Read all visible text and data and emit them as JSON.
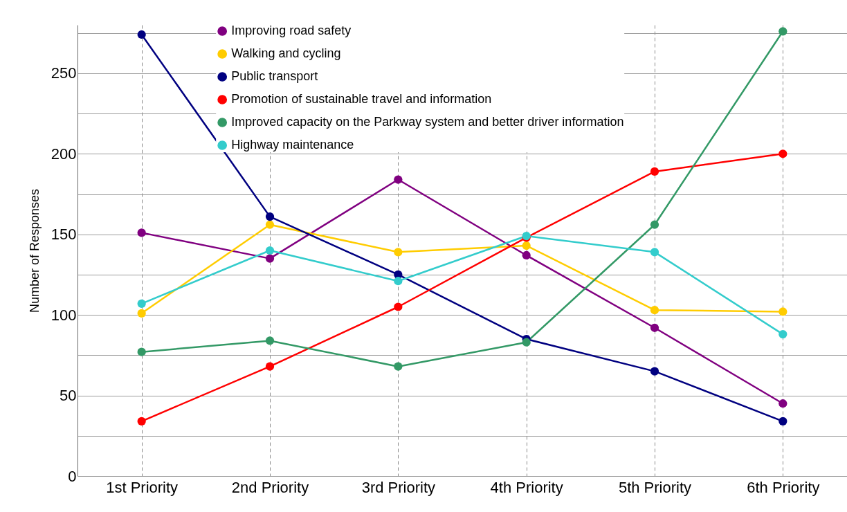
{
  "chart_data": {
    "type": "line",
    "ylabel": "Number of Responses",
    "categories": [
      "1st Priority",
      "2nd Priority",
      "3rd Priority",
      "4th Priority",
      "5th Priority",
      "6th Priority"
    ],
    "series": [
      {
        "name": "Improving road safety",
        "color": "#800080",
        "values": [
          151,
          135,
          184,
          137,
          92,
          45
        ]
      },
      {
        "name": "Walking and cycling",
        "color": "#ffcc00",
        "values": [
          101,
          156,
          139,
          143,
          103,
          102
        ]
      },
      {
        "name": "Public transport",
        "color": "#000080",
        "values": [
          274,
          161,
          125,
          85,
          65,
          34
        ]
      },
      {
        "name": "Promotion of sustainable travel and information",
        "color": "#ff0000",
        "values": [
          34,
          68,
          105,
          148,
          189,
          200
        ]
      },
      {
        "name": "Improved capacity on the Parkway system and better driver information",
        "color": "#339966",
        "values": [
          77,
          84,
          68,
          83,
          156,
          276
        ]
      },
      {
        "name": "Highway maintenance",
        "color": "#33cccc",
        "values": [
          107,
          140,
          121,
          149,
          139,
          88
        ]
      }
    ],
    "ylim": [
      0,
      280
    ],
    "yticks": [
      0,
      {
        "value": 25,
        "label": null
      },
      50,
      {
        "value": 75,
        "label": null
      },
      100,
      {
        "value": 125,
        "label": null
      },
      150,
      {
        "value": 175,
        "label": null
      },
      200,
      {
        "value": 225,
        "label": null
      },
      250,
      {
        "value": 275,
        "label": null
      }
    ],
    "grid": true,
    "legend": "top",
    "marker": "circle",
    "line_style": "solid"
  }
}
